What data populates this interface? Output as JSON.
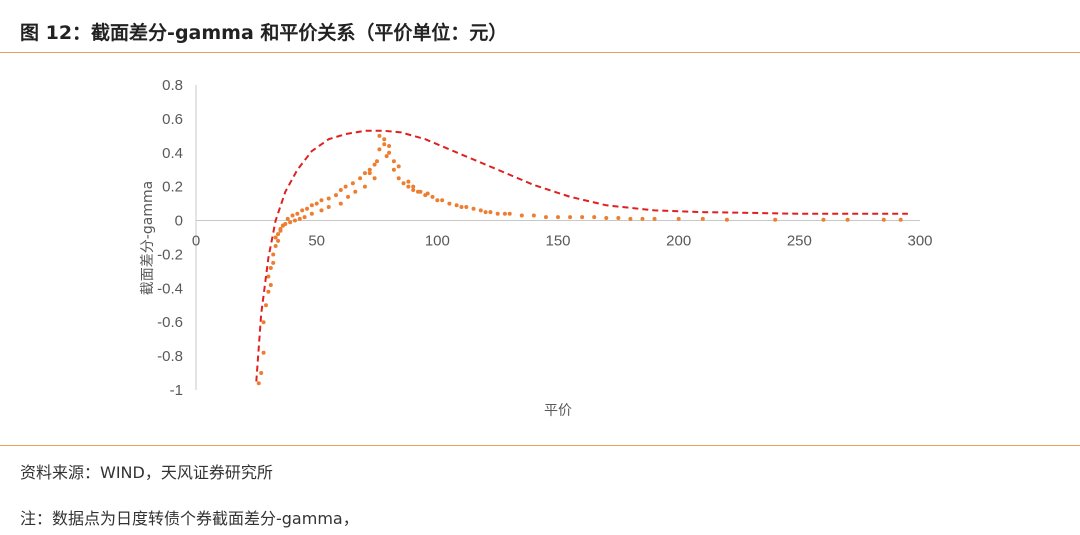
{
  "header": {
    "title": "图 12：截面差分-gamma 和平价关系（平价单位：元）"
  },
  "footer": {
    "source": "资料来源：WIND，天风证券研究所",
    "note": "注：数据点为日度转债个券截面差分-gamma，"
  },
  "colors": {
    "accent_rule": "#e8a05a",
    "points": "#ed7d31",
    "envelope": "#e02020"
  },
  "chart_data": {
    "type": "scatter",
    "title": "",
    "xlabel": "平价",
    "ylabel": "截面差分-gamma",
    "xlim": [
      0,
      300
    ],
    "ylim": [
      -1,
      0.8
    ],
    "x_ticks": [
      "0",
      "50",
      "100",
      "150",
      "200",
      "250",
      "300"
    ],
    "y_ticks": [
      "0.8",
      "0.6",
      "0.4",
      "0.2",
      "0",
      "-0.2",
      "-0.4",
      "-0.6",
      "-0.8",
      "-1"
    ],
    "grid": false,
    "legend": "none",
    "points_note": "dense cloud of daily bond points; values sampled from the plotted distribution",
    "envelope": {
      "style": "dashed",
      "x": [
        25,
        27,
        30,
        33,
        37,
        42,
        48,
        55,
        62,
        70,
        78,
        85,
        95,
        110,
        125,
        140,
        155,
        170,
        190,
        210,
        230,
        250,
        270,
        295
      ],
      "y": [
        -0.95,
        -0.55,
        -0.22,
        0.0,
        0.17,
        0.3,
        0.41,
        0.48,
        0.51,
        0.53,
        0.53,
        0.52,
        0.48,
        0.39,
        0.3,
        0.21,
        0.14,
        0.09,
        0.06,
        0.05,
        0.045,
        0.04,
        0.04,
        0.04
      ]
    },
    "series": [
      {
        "x": [
          26,
          27,
          28,
          28,
          29,
          30,
          30,
          31,
          32,
          33,
          33,
          34,
          35,
          36,
          37,
          38,
          40,
          42,
          44,
          46,
          48,
          50,
          52,
          55,
          58,
          60,
          62,
          65,
          68,
          70,
          72,
          74,
          75,
          76,
          78,
          80,
          82,
          84,
          86,
          88,
          90,
          92,
          95,
          98,
          100,
          102,
          105,
          108,
          110,
          112,
          115,
          118,
          120,
          122,
          125,
          128,
          130,
          135,
          140,
          145,
          150,
          155,
          160,
          165,
          170,
          175,
          180,
          185,
          190,
          200,
          210,
          220,
          240,
          260,
          270,
          285,
          292,
          76,
          78,
          80,
          79,
          82,
          84,
          72,
          74,
          70,
          88,
          90,
          93,
          96,
          60,
          63,
          66,
          55,
          52,
          48,
          45,
          43,
          41,
          39,
          36,
          35,
          34,
          32,
          31
        ],
        "y": [
          -0.96,
          -0.9,
          -0.78,
          -0.6,
          -0.5,
          -0.42,
          -0.33,
          -0.28,
          -0.2,
          -0.15,
          -0.1,
          -0.08,
          -0.05,
          -0.03,
          -0.02,
          0.01,
          0.03,
          0.04,
          0.06,
          0.07,
          0.09,
          0.1,
          0.12,
          0.13,
          0.15,
          0.18,
          0.2,
          0.22,
          0.25,
          0.28,
          0.3,
          0.33,
          0.35,
          0.42,
          0.45,
          0.4,
          0.3,
          0.25,
          0.22,
          0.2,
          0.18,
          0.17,
          0.15,
          0.14,
          0.12,
          0.12,
          0.1,
          0.09,
          0.08,
          0.08,
          0.07,
          0.06,
          0.05,
          0.05,
          0.04,
          0.04,
          0.04,
          0.03,
          0.03,
          0.02,
          0.02,
          0.02,
          0.02,
          0.02,
          0.015,
          0.015,
          0.01,
          0.01,
          0.01,
          0.01,
          0.01,
          0.005,
          0.005,
          0.005,
          0.005,
          0.005,
          0.005,
          0.5,
          0.48,
          0.44,
          0.38,
          0.35,
          0.32,
          0.28,
          0.25,
          0.2,
          0.23,
          0.2,
          0.17,
          0.16,
          0.1,
          0.14,
          0.17,
          0.08,
          0.06,
          0.04,
          0.02,
          0.01,
          0.0,
          -0.01,
          -0.03,
          -0.06,
          -0.12,
          -0.25,
          -0.38
        ]
      }
    ]
  }
}
